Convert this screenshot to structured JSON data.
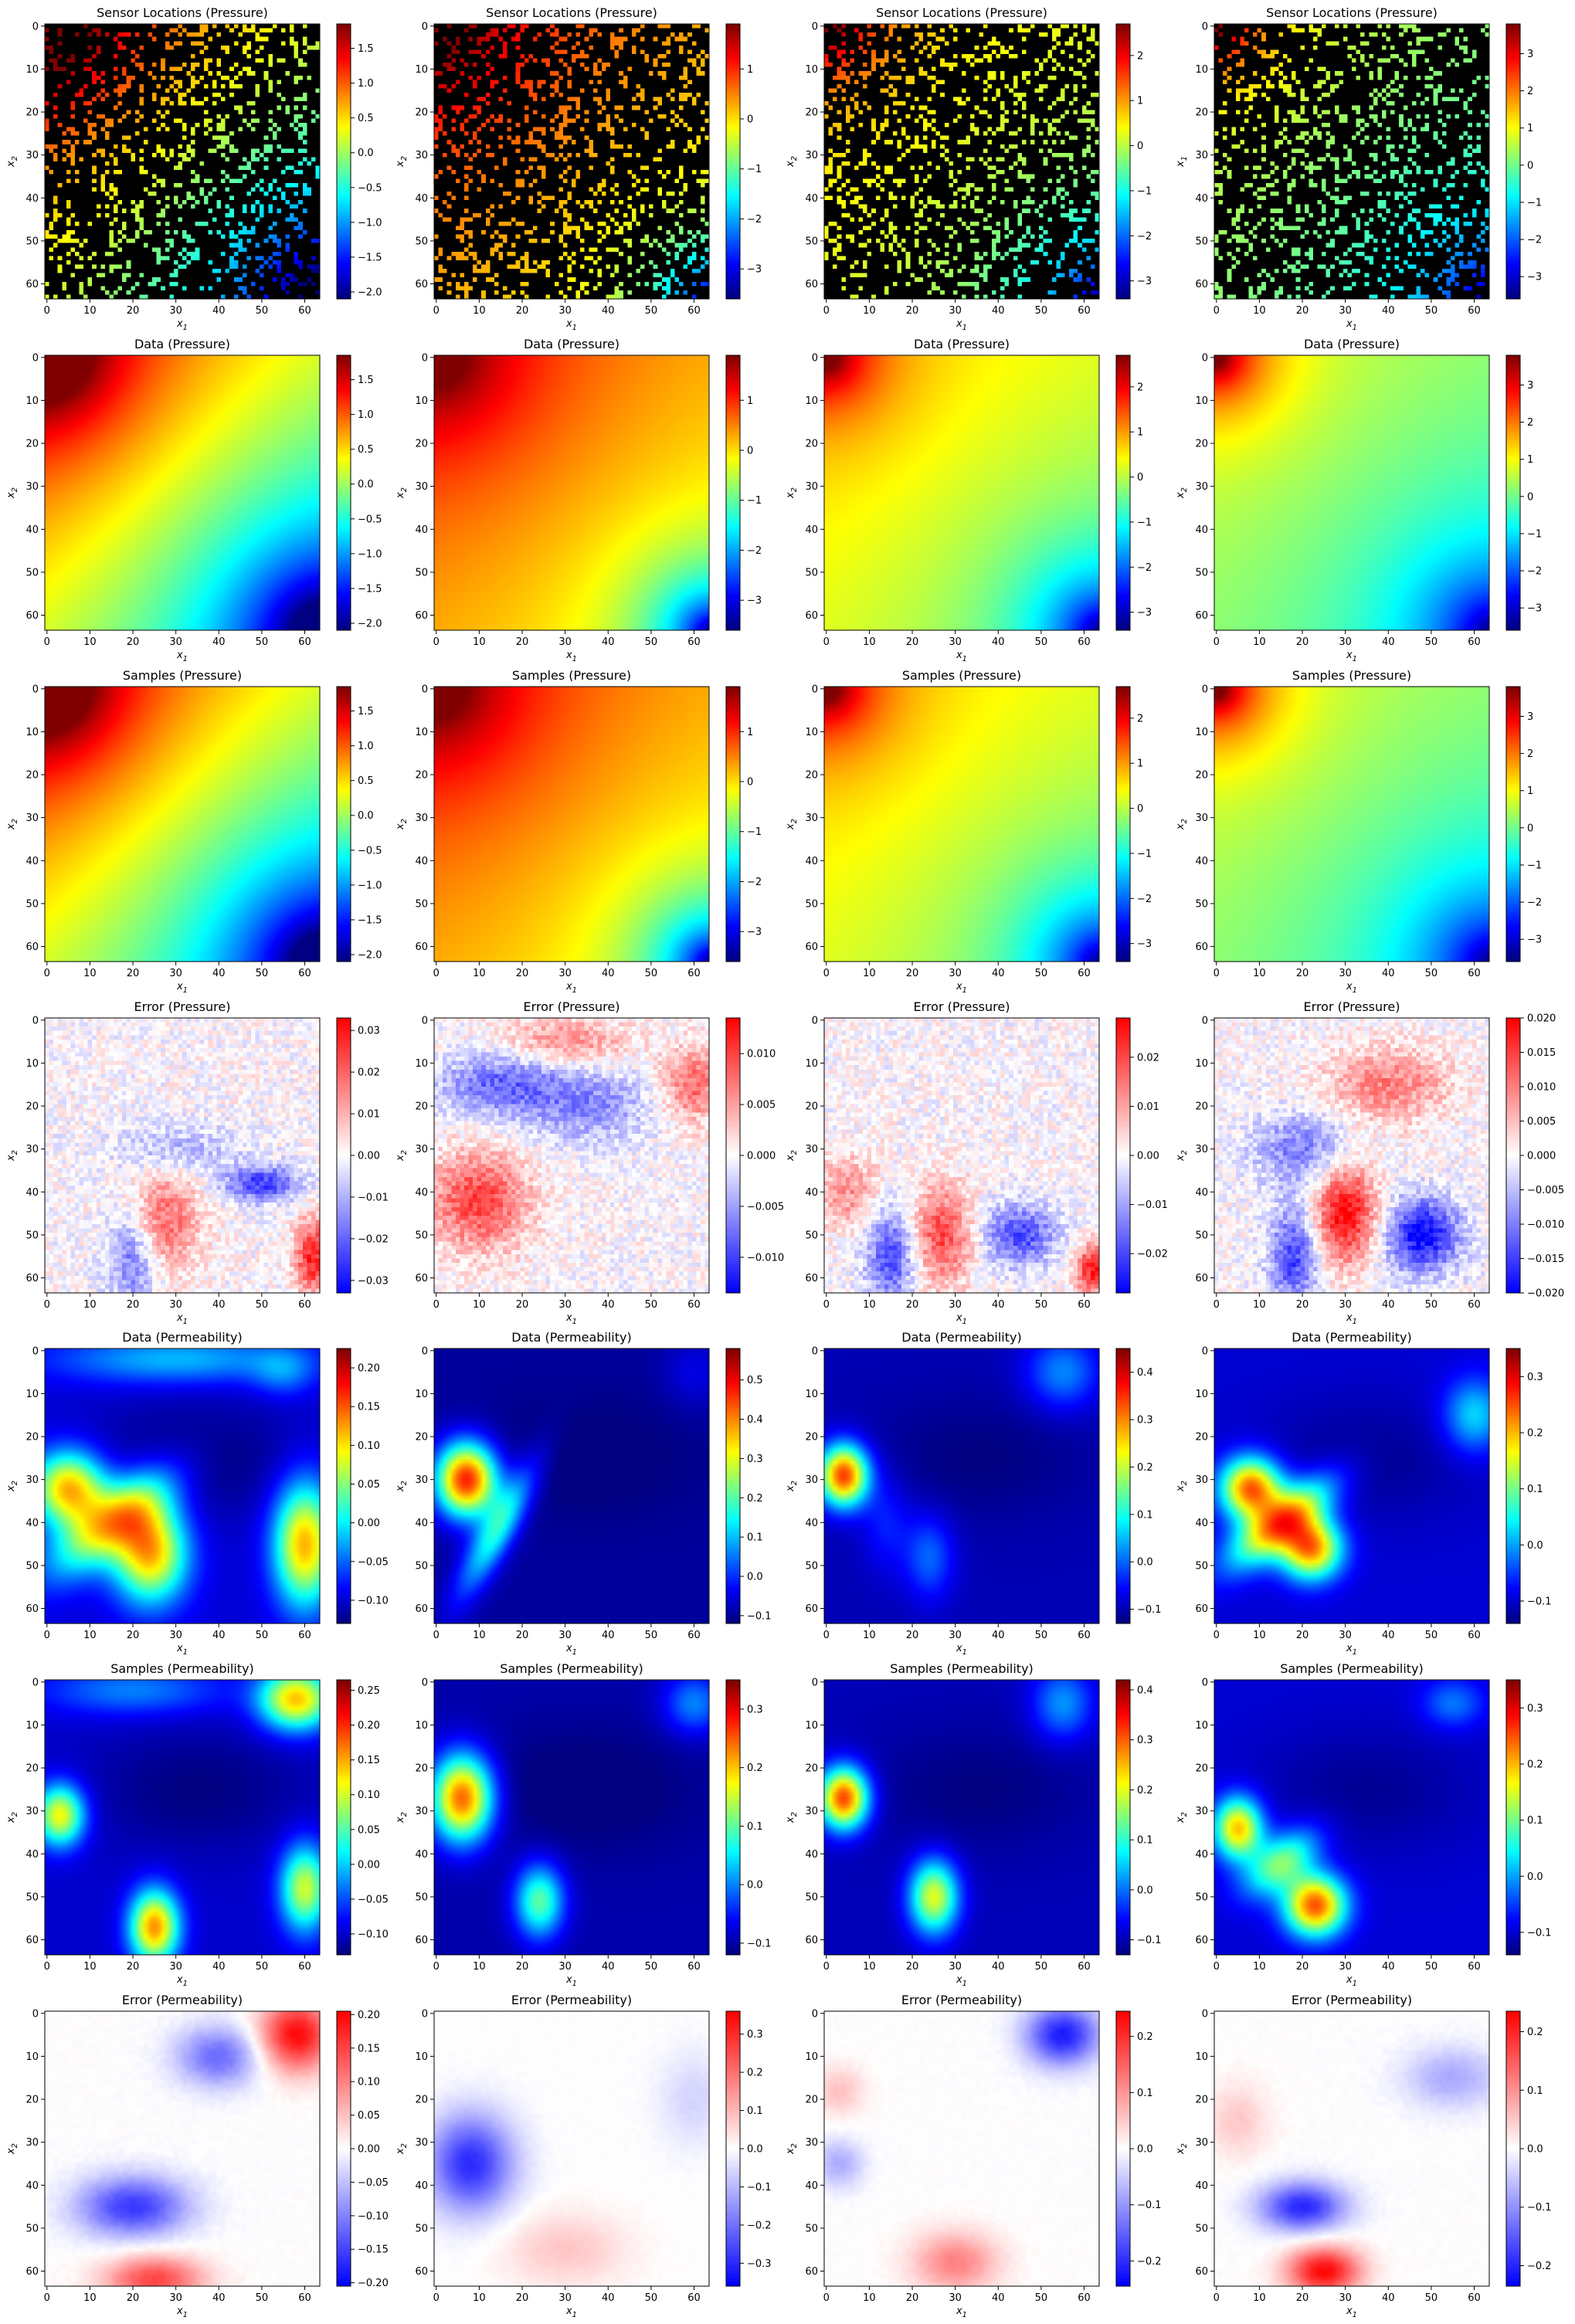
{
  "chart_data": {
    "type": "heatmap",
    "layout": {
      "rows": 7,
      "cols": 4
    },
    "axes": {
      "xlabel": "x1",
      "ylabel": "x2",
      "xticks": [
        "0",
        "10",
        "20",
        "30",
        "40",
        "50",
        "60"
      ],
      "yticks": [
        "0",
        "10",
        "20",
        "30",
        "40",
        "50",
        "60"
      ],
      "xlim": [
        0,
        63
      ],
      "ylim": [
        63,
        0
      ]
    },
    "ylabel_variants": [
      "x2",
      "x2",
      "x2",
      "x1"
    ],
    "colormaps": {
      "jet": "jet",
      "bwr": "bwr"
    },
    "grid": false,
    "panels": [
      {
        "row": 0,
        "col": 0,
        "title": "Sensor Locations (Pressure)",
        "kind": "sensors",
        "cmap": "jet",
        "clim": [
          -2.1,
          1.85
        ],
        "cbar_ticks": [
          "1.5",
          "1.0",
          "0.5",
          "0.0",
          "−0.5",
          "−1.0",
          "−1.5",
          "−2.0"
        ],
        "cbar_vals": [
          1.5,
          1.0,
          0.5,
          0.0,
          -0.5,
          -1.0,
          -1.5,
          -2.0
        ]
      },
      {
        "row": 0,
        "col": 1,
        "title": "Sensor Locations (Pressure)",
        "kind": "sensors",
        "cmap": "jet",
        "clim": [
          -3.6,
          1.9
        ],
        "cbar_ticks": [
          "1",
          "0",
          "−1",
          "−2",
          "−3"
        ],
        "cbar_vals": [
          1,
          0,
          -1,
          -2,
          -3
        ]
      },
      {
        "row": 0,
        "col": 2,
        "title": "Sensor Locations (Pressure)",
        "kind": "sensors",
        "cmap": "jet",
        "clim": [
          -3.4,
          2.7
        ],
        "cbar_ticks": [
          "2",
          "1",
          "0",
          "−1",
          "−2",
          "−3"
        ],
        "cbar_vals": [
          2,
          1,
          0,
          -1,
          -2,
          -3
        ]
      },
      {
        "row": 0,
        "col": 3,
        "title": "Sensor Locations (Pressure)",
        "kind": "sensors",
        "cmap": "jet",
        "clim": [
          -3.6,
          3.8
        ],
        "cbar_ticks": [
          "3",
          "2",
          "1",
          "0",
          "−1",
          "−2",
          "−3"
        ],
        "cbar_vals": [
          3,
          2,
          1,
          0,
          -1,
          -2,
          -3
        ]
      },
      {
        "row": 1,
        "col": 0,
        "title": "Data (Pressure)",
        "kind": "pressure",
        "cmap": "jet",
        "clim": [
          -2.1,
          1.85
        ],
        "cbar_ticks": [
          "1.5",
          "1.0",
          "0.5",
          "0.0",
          "−0.5",
          "−1.0",
          "−1.5",
          "−2.0"
        ],
        "cbar_vals": [
          1.5,
          1.0,
          0.5,
          0.0,
          -0.5,
          -1.0,
          -1.5,
          -2.0
        ]
      },
      {
        "row": 1,
        "col": 1,
        "title": "Data (Pressure)",
        "kind": "pressure",
        "cmap": "jet",
        "clim": [
          -3.6,
          1.9
        ],
        "cbar_ticks": [
          "1",
          "0",
          "−1",
          "−2",
          "−3"
        ],
        "cbar_vals": [
          1,
          0,
          -1,
          -2,
          -3
        ]
      },
      {
        "row": 1,
        "col": 2,
        "title": "Data (Pressure)",
        "kind": "pressure",
        "cmap": "jet",
        "clim": [
          -3.4,
          2.7
        ],
        "cbar_ticks": [
          "2",
          "1",
          "0",
          "−1",
          "−2",
          "−3"
        ],
        "cbar_vals": [
          2,
          1,
          0,
          -1,
          -2,
          -3
        ]
      },
      {
        "row": 1,
        "col": 3,
        "title": "Data (Pressure)",
        "kind": "pressure",
        "cmap": "jet",
        "clim": [
          -3.6,
          3.8
        ],
        "cbar_ticks": [
          "3",
          "2",
          "1",
          "0",
          "−1",
          "−2",
          "−3"
        ],
        "cbar_vals": [
          3,
          2,
          1,
          0,
          -1,
          -2,
          -3
        ]
      },
      {
        "row": 2,
        "col": 0,
        "title": "Samples (Pressure)",
        "kind": "pressure",
        "cmap": "jet",
        "clim": [
          -2.1,
          1.85
        ],
        "cbar_ticks": [
          "1.5",
          "1.0",
          "0.5",
          "0.0",
          "−0.5",
          "−1.0",
          "−1.5",
          "−2.0"
        ],
        "cbar_vals": [
          1.5,
          1.0,
          0.5,
          0.0,
          -0.5,
          -1.0,
          -1.5,
          -2.0
        ]
      },
      {
        "row": 2,
        "col": 1,
        "title": "Samples (Pressure)",
        "kind": "pressure",
        "cmap": "jet",
        "clim": [
          -3.6,
          1.9
        ],
        "cbar_ticks": [
          "1",
          "0",
          "−1",
          "−2",
          "−3"
        ],
        "cbar_vals": [
          1,
          0,
          -1,
          -2,
          -3
        ]
      },
      {
        "row": 2,
        "col": 2,
        "title": "Samples (Pressure)",
        "kind": "pressure",
        "cmap": "jet",
        "clim": [
          -3.4,
          2.7
        ],
        "cbar_ticks": [
          "2",
          "1",
          "0",
          "−1",
          "−2",
          "−3"
        ],
        "cbar_vals": [
          2,
          1,
          0,
          -1,
          -2,
          -3
        ]
      },
      {
        "row": 2,
        "col": 3,
        "title": "Samples (Pressure)",
        "kind": "pressure",
        "cmap": "jet",
        "clim": [
          -3.6,
          3.8
        ],
        "cbar_ticks": [
          "3",
          "2",
          "1",
          "0",
          "−1",
          "−2",
          "−3"
        ],
        "cbar_vals": [
          3,
          2,
          1,
          0,
          -1,
          -2,
          -3
        ]
      },
      {
        "row": 3,
        "col": 0,
        "title": "Error (Pressure)",
        "kind": "perror",
        "cmap": "bwr",
        "clim": [
          -0.033,
          0.033
        ],
        "cbar_ticks": [
          "0.03",
          "0.02",
          "0.01",
          "0.00",
          "−0.01",
          "−0.02",
          "−0.03"
        ],
        "cbar_vals": [
          0.03,
          0.02,
          0.01,
          0.0,
          -0.01,
          -0.02,
          -0.03
        ]
      },
      {
        "row": 3,
        "col": 1,
        "title": "Error (Pressure)",
        "kind": "perror",
        "cmap": "bwr",
        "clim": [
          -0.0135,
          0.0135
        ],
        "cbar_ticks": [
          "0.010",
          "0.005",
          "0.000",
          "−0.005",
          "−0.010"
        ],
        "cbar_vals": [
          0.01,
          0.005,
          0.0,
          -0.005,
          -0.01
        ]
      },
      {
        "row": 3,
        "col": 2,
        "title": "Error (Pressure)",
        "kind": "perror",
        "cmap": "bwr",
        "clim": [
          -0.028,
          0.028
        ],
        "cbar_ticks": [
          "0.02",
          "0.01",
          "0.00",
          "−0.01",
          "−0.02"
        ],
        "cbar_vals": [
          0.02,
          0.01,
          0.0,
          -0.01,
          -0.02
        ]
      },
      {
        "row": 3,
        "col": 3,
        "title": "Error (Pressure)",
        "kind": "perror",
        "cmap": "bwr",
        "clim": [
          -0.02,
          0.02
        ],
        "cbar_ticks": [
          "0.020",
          "0.015",
          "0.010",
          "0.005",
          "0.000",
          "−0.005",
          "−0.010",
          "−0.015",
          "−0.020"
        ],
        "cbar_vals": [
          0.02,
          0.015,
          0.01,
          0.005,
          0.0,
          -0.005,
          -0.01,
          -0.015,
          -0.02
        ]
      },
      {
        "row": 4,
        "col": 0,
        "title": "Data (Permeability)",
        "kind": "perm",
        "cmap": "jet",
        "clim": [
          -0.13,
          0.225
        ],
        "cbar_ticks": [
          "0.20",
          "0.15",
          "0.10",
          "0.05",
          "0.00",
          "−0.05",
          "−0.10"
        ],
        "cbar_vals": [
          0.2,
          0.15,
          0.1,
          0.05,
          0.0,
          -0.05,
          -0.1
        ]
      },
      {
        "row": 4,
        "col": 1,
        "title": "Data (Permeability)",
        "kind": "perm",
        "cmap": "jet",
        "clim": [
          -0.12,
          0.58
        ],
        "cbar_ticks": [
          "0.5",
          "0.4",
          "0.3",
          "0.2",
          "0.1",
          "0.0",
          "−0.1"
        ],
        "cbar_vals": [
          0.5,
          0.4,
          0.3,
          0.2,
          0.1,
          0.0,
          -0.1
        ]
      },
      {
        "row": 4,
        "col": 2,
        "title": "Data (Permeability)",
        "kind": "perm",
        "cmap": "jet",
        "clim": [
          -0.13,
          0.45
        ],
        "cbar_ticks": [
          "0.4",
          "0.3",
          "0.2",
          "0.1",
          "0.0",
          "−0.1"
        ],
        "cbar_vals": [
          0.4,
          0.3,
          0.2,
          0.1,
          0.0,
          -0.1
        ]
      },
      {
        "row": 4,
        "col": 3,
        "title": "Data (Permeability)",
        "kind": "perm",
        "cmap": "jet",
        "clim": [
          -0.14,
          0.35
        ],
        "cbar_ticks": [
          "0.3",
          "0.2",
          "0.1",
          "0.0",
          "−0.1"
        ],
        "cbar_vals": [
          0.3,
          0.2,
          0.1,
          0.0,
          -0.1
        ]
      },
      {
        "row": 5,
        "col": 0,
        "title": "Samples (Permeability)",
        "kind": "perm",
        "cmap": "jet",
        "clim": [
          -0.13,
          0.265
        ],
        "cbar_ticks": [
          "0.25",
          "0.20",
          "0.15",
          "0.10",
          "0.05",
          "0.00",
          "−0.05",
          "−0.10"
        ],
        "cbar_vals": [
          0.25,
          0.2,
          0.15,
          0.1,
          0.05,
          0.0,
          -0.05,
          -0.1
        ]
      },
      {
        "row": 5,
        "col": 1,
        "title": "Samples (Permeability)",
        "kind": "perm",
        "cmap": "jet",
        "clim": [
          -0.12,
          0.35
        ],
        "cbar_ticks": [
          "0.3",
          "0.2",
          "0.1",
          "0.0",
          "−0.1"
        ],
        "cbar_vals": [
          0.3,
          0.2,
          0.1,
          0.0,
          -0.1
        ]
      },
      {
        "row": 5,
        "col": 2,
        "title": "Samples (Permeability)",
        "kind": "perm",
        "cmap": "jet",
        "clim": [
          -0.13,
          0.42
        ],
        "cbar_ticks": [
          "0.4",
          "0.3",
          "0.2",
          "0.1",
          "0.0",
          "−0.1"
        ],
        "cbar_vals": [
          0.4,
          0.3,
          0.2,
          0.1,
          0.0,
          -0.1
        ]
      },
      {
        "row": 5,
        "col": 3,
        "title": "Samples (Permeability)",
        "kind": "perm",
        "cmap": "jet",
        "clim": [
          -0.14,
          0.35
        ],
        "cbar_ticks": [
          "0.3",
          "0.2",
          "0.1",
          "0.0",
          "−0.1"
        ],
        "cbar_vals": [
          0.3,
          0.2,
          0.1,
          0.0,
          -0.1
        ]
      },
      {
        "row": 6,
        "col": 0,
        "title": "Error (Permeability)",
        "kind": "permerror",
        "cmap": "bwr",
        "clim": [
          -0.205,
          0.205
        ],
        "cbar_ticks": [
          "0.20",
          "0.15",
          "0.10",
          "0.05",
          "0.00",
          "−0.05",
          "−0.10",
          "−0.15",
          "−0.20"
        ],
        "cbar_vals": [
          0.2,
          0.15,
          0.1,
          0.05,
          0.0,
          -0.05,
          -0.1,
          -0.15,
          -0.2
        ]
      },
      {
        "row": 6,
        "col": 1,
        "title": "Error (Permeability)",
        "kind": "permerror",
        "cmap": "bwr",
        "clim": [
          -0.36,
          0.36
        ],
        "cbar_ticks": [
          "0.3",
          "0.2",
          "0.1",
          "0.0",
          "−0.1",
          "−0.2",
          "−0.3"
        ],
        "cbar_vals": [
          0.3,
          0.2,
          0.1,
          0.0,
          -0.1,
          -0.2,
          -0.3
        ]
      },
      {
        "row": 6,
        "col": 2,
        "title": "Error (Permeability)",
        "kind": "permerror",
        "cmap": "bwr",
        "clim": [
          -0.245,
          0.245
        ],
        "cbar_ticks": [
          "0.2",
          "0.1",
          "0.0",
          "−0.1",
          "−0.2"
        ],
        "cbar_vals": [
          0.2,
          0.1,
          0.0,
          -0.1,
          -0.2
        ]
      },
      {
        "row": 6,
        "col": 3,
        "title": "Error (Permeability)",
        "kind": "permerror",
        "cmap": "bwr",
        "clim": [
          -0.235,
          0.235
        ],
        "cbar_ticks": [
          "0.2",
          "0.1",
          "0.0",
          "−0.1",
          "−0.2"
        ],
        "cbar_vals": [
          0.2,
          0.1,
          0.0,
          -0.1,
          -0.2
        ]
      }
    ]
  }
}
